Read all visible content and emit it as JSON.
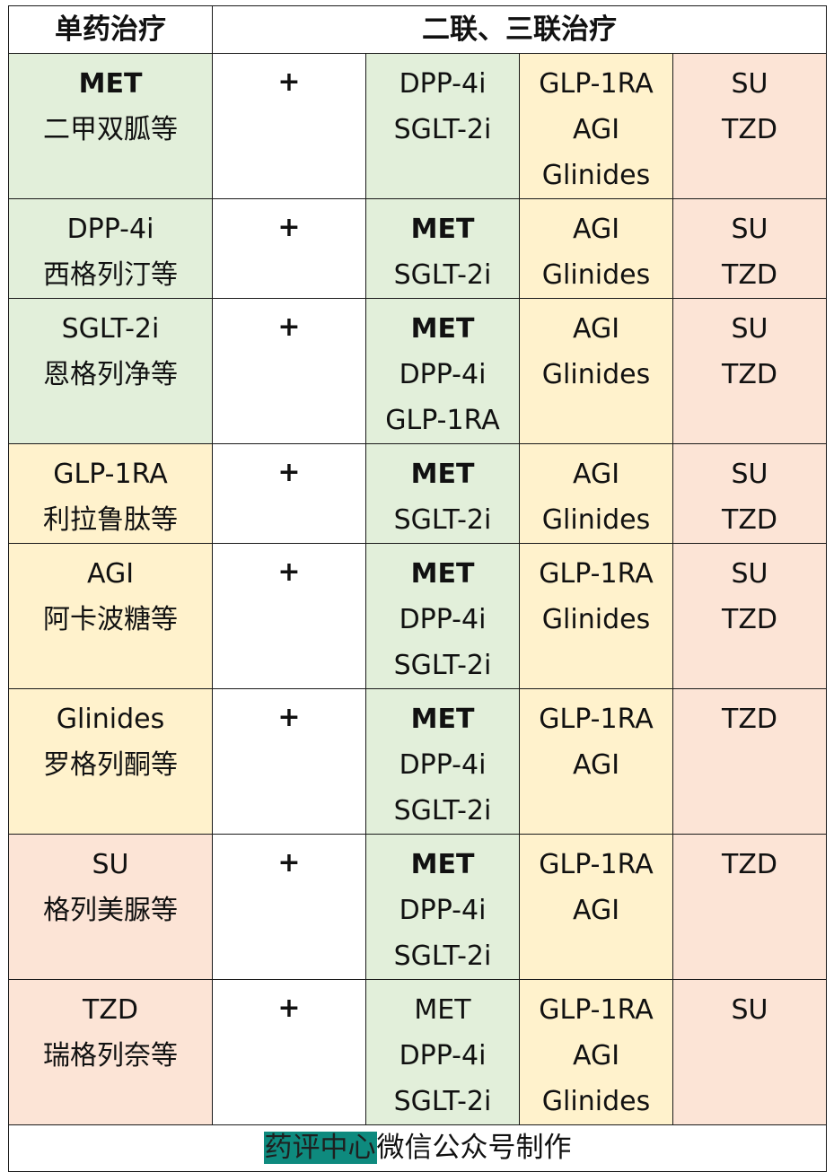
{
  "header": {
    "mono": "单药治疗",
    "combo": "二联、三联治疗"
  },
  "plus": "+",
  "rows": [
    {
      "mono": [
        "MET",
        "二甲双胍等"
      ],
      "mono_bold_first": true,
      "mono_bg": "green",
      "a": [
        "DPP-4i",
        "SGLT-2i"
      ],
      "a_bold_first": false,
      "b": [
        "GLP-1RA",
        "AGI",
        "Glinides"
      ],
      "c": [
        "SU",
        "TZD"
      ]
    },
    {
      "mono": [
        "DPP-4i",
        "西格列汀等"
      ],
      "mono_bold_first": false,
      "mono_bg": "green",
      "a": [
        "MET",
        "SGLT-2i"
      ],
      "a_bold_first": true,
      "b": [
        "AGI",
        "Glinides"
      ],
      "c": [
        "SU",
        "TZD"
      ]
    },
    {
      "mono": [
        "SGLT-2i",
        "恩格列净等"
      ],
      "mono_bold_first": false,
      "mono_bg": "green",
      "a": [
        "MET",
        "DPP-4i",
        "GLP-1RA"
      ],
      "a_bold_first": true,
      "b": [
        "AGI",
        "Glinides"
      ],
      "c": [
        "SU",
        "TZD"
      ]
    },
    {
      "mono": [
        "GLP-1RA",
        "利拉鲁肽等"
      ],
      "mono_bold_first": false,
      "mono_bg": "yellow",
      "a": [
        "MET",
        "SGLT-2i"
      ],
      "a_bold_first": true,
      "b": [
        "AGI",
        "Glinides"
      ],
      "c": [
        "SU",
        "TZD"
      ]
    },
    {
      "mono": [
        "AGI",
        "阿卡波糖等"
      ],
      "mono_bold_first": false,
      "mono_bg": "yellow",
      "a": [
        "MET",
        "DPP-4i",
        "SGLT-2i"
      ],
      "a_bold_first": true,
      "b": [
        "GLP-1RA",
        "Glinides"
      ],
      "c": [
        "SU",
        "TZD"
      ]
    },
    {
      "mono": [
        "Glinides",
        "罗格列酮等"
      ],
      "mono_bold_first": false,
      "mono_bg": "yellow",
      "a": [
        "MET",
        "DPP-4i",
        "SGLT-2i"
      ],
      "a_bold_first": true,
      "b": [
        "GLP-1RA",
        "AGI"
      ],
      "c": [
        "TZD"
      ]
    },
    {
      "mono": [
        "SU",
        "格列美脲等"
      ],
      "mono_bold_first": false,
      "mono_bg": "pink",
      "a": [
        "MET",
        "DPP-4i",
        "SGLT-2i"
      ],
      "a_bold_first": true,
      "b": [
        "GLP-1RA",
        "AGI"
      ],
      "c": [
        "TZD"
      ]
    },
    {
      "mono": [
        "TZD",
        "瑞格列奈等"
      ],
      "mono_bold_first": false,
      "mono_bg": "pink",
      "a": [
        "MET",
        "DPP-4i",
        "SGLT-2i"
      ],
      "a_bold_first": false,
      "b": [
        "GLP-1RA",
        "AGI",
        "Glinides"
      ],
      "c": [
        "SU"
      ]
    }
  ],
  "footer": {
    "highlight": "药评中心",
    "rest": "微信公众号制作"
  },
  "colors": {
    "green": "#e2efda",
    "yellow": "#fff2cc",
    "pink": "#fce4d6",
    "highlight": "#0e8a7e",
    "border": "#1a1a1a"
  }
}
